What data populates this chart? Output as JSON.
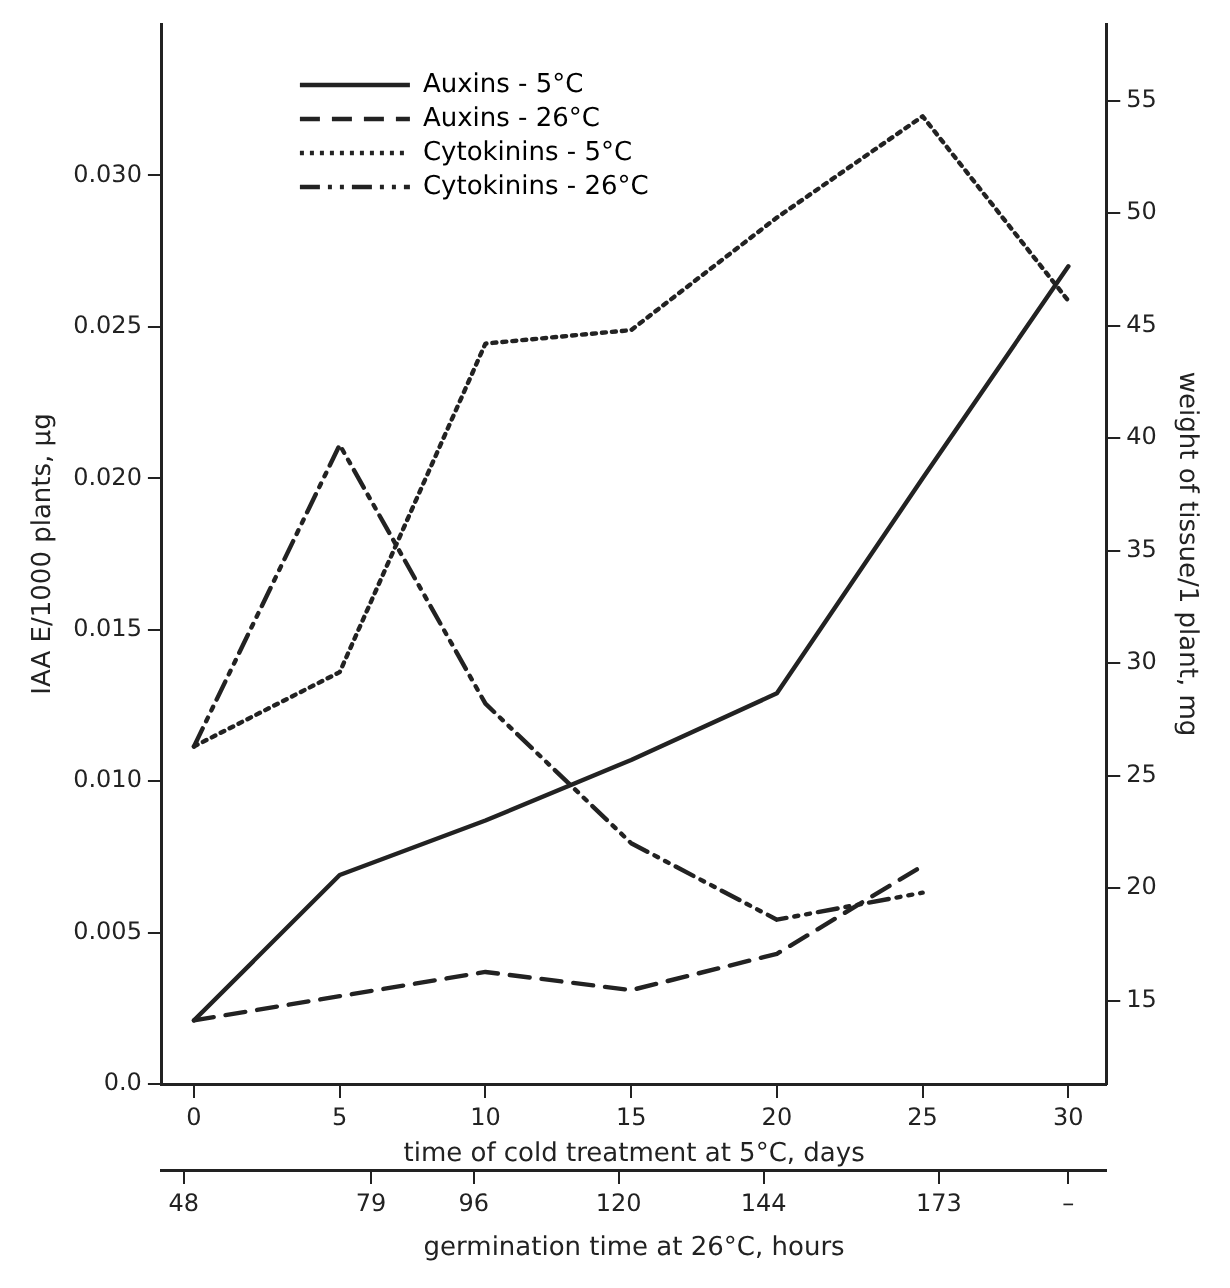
{
  "chart_data": {
    "type": "line",
    "xlabel": "time of cold treatment at 5°C, days",
    "x2label": "germination time at 26°C, hours",
    "ylabel": "IAA E/1000 plants, µg",
    "y2label": "weight of tissue/1 plant, mg",
    "x": [
      0,
      5,
      10,
      15,
      20,
      25,
      30
    ],
    "xlim": [
      -1.1,
      31.3
    ],
    "xticks": [
      0,
      5,
      10,
      15,
      20,
      25,
      30
    ],
    "x2lim": [
      44.4,
      200.7
    ],
    "x2ticks": [
      48,
      79,
      96,
      120,
      144,
      173,
      {
        "value": 194.4,
        "label": "–"
      }
    ],
    "ylim": [
      0,
      0.035
    ],
    "yticks": [
      {
        "value": 0,
        "label": "0.0"
      },
      {
        "value": 0.005,
        "label": "0.005"
      },
      {
        "value": 0.01,
        "label": "0.010"
      },
      {
        "value": 0.015,
        "label": "0.015"
      },
      {
        "value": 0.02,
        "label": "0.020"
      },
      {
        "value": 0.025,
        "label": "0.025"
      },
      {
        "value": 0.03,
        "label": "0.030"
      }
    ],
    "y2lim": [
      11.3,
      58.4
    ],
    "y2ticks": [
      15,
      20,
      25,
      30,
      35,
      40,
      45,
      50,
      55
    ],
    "grid": false,
    "legend": "top left",
    "marker": "none",
    "series": [
      {
        "name": "Auxins - 5°C",
        "color": "#222222",
        "line_style": "solid",
        "values": [
          0.0021,
          0.0069,
          0.0087,
          0.0107,
          0.0129,
          0.02,
          0.027
        ]
      },
      {
        "name": "Auxins - 26°C",
        "color": "#222222",
        "line_style": "dashed",
        "values": [
          0.0021,
          0.0029,
          0.0037,
          0.0031,
          0.0043,
          0.0072,
          null
        ]
      },
      {
        "name": "Cytokinins - 5°C",
        "color": "#222222",
        "line_style": "dotted",
        "axis": "y2",
        "values": [
          26.3,
          29.6,
          44.2,
          44.8,
          49.8,
          54.3,
          46.1
        ]
      },
      {
        "name": "Cytokinins - 26°C",
        "color": "#222222",
        "line_style": "dashdot",
        "axis": "y2",
        "values": [
          26.3,
          39.7,
          28.2,
          22.0,
          18.6,
          19.8,
          null
        ]
      }
    ]
  }
}
